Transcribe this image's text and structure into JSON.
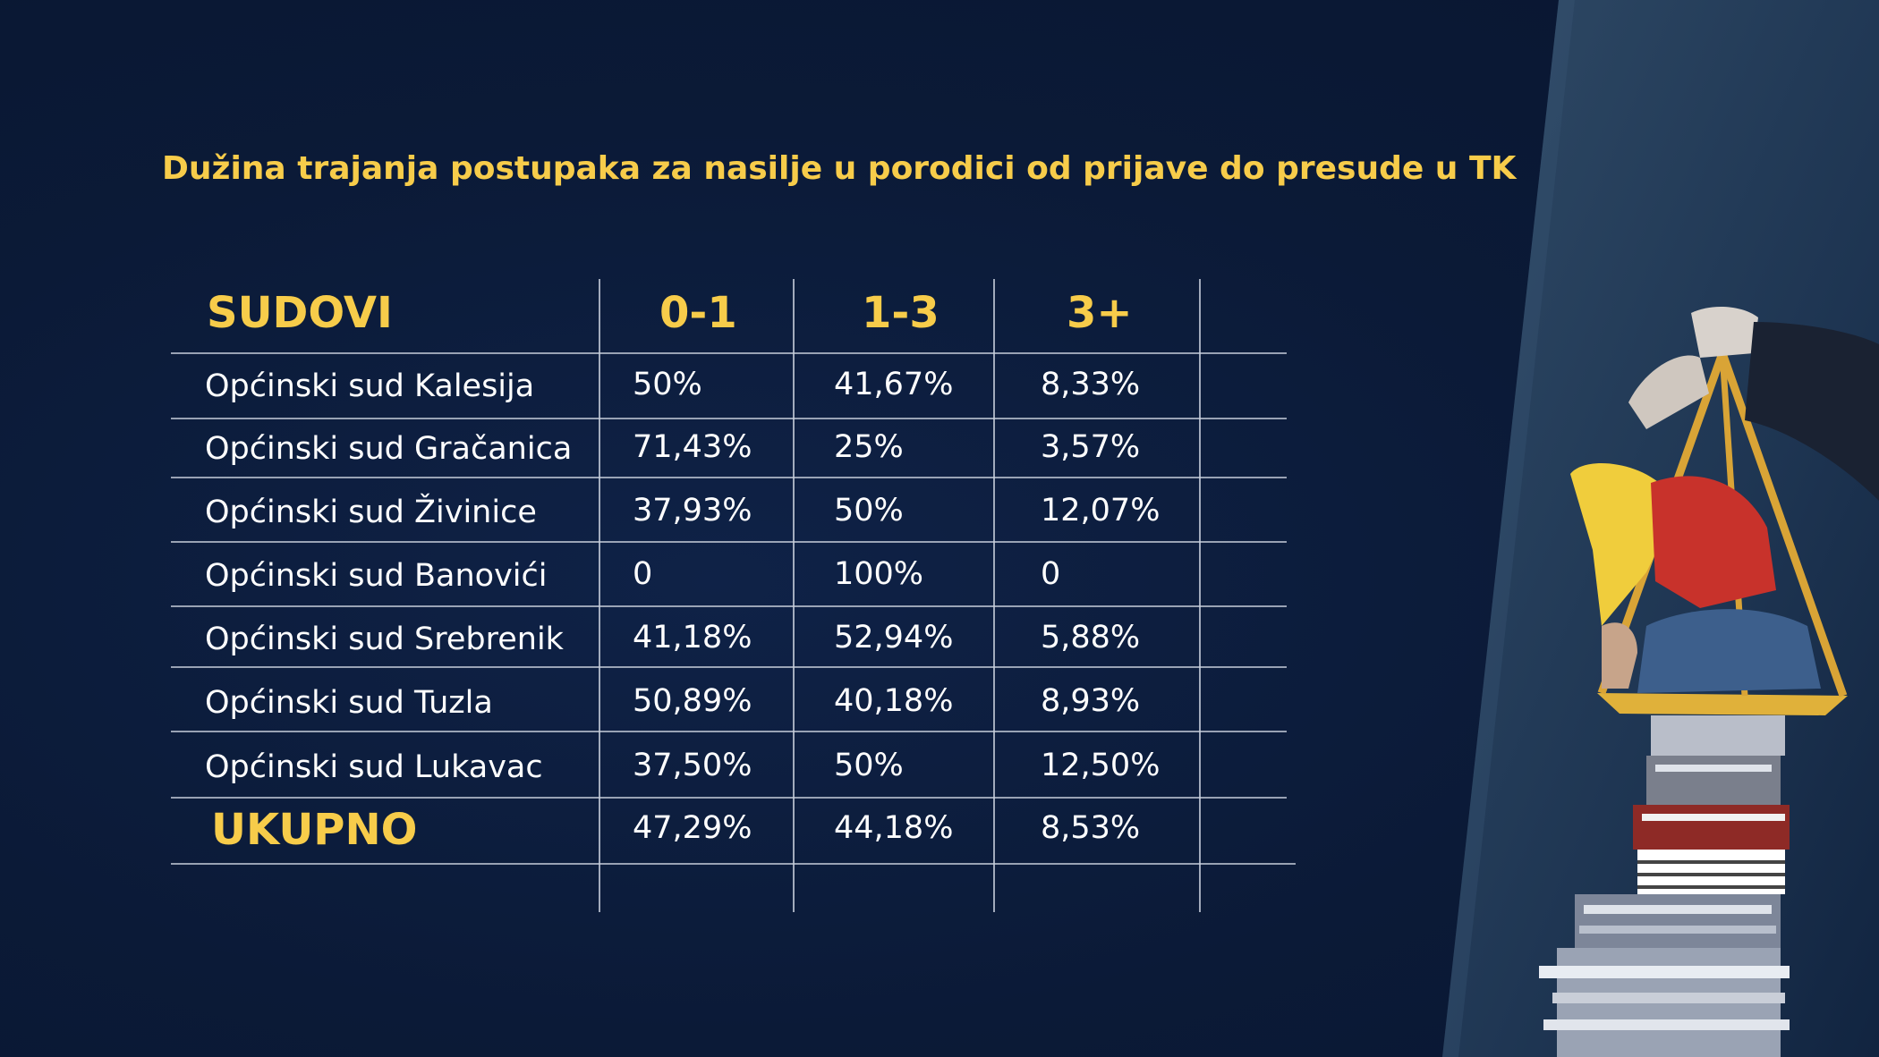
{
  "title": "Dužina trajanja postupaka za nasilje u porodici od prijave do presude u TK",
  "chart_data": {
    "type": "table",
    "columns": [
      "SUDOVI",
      "0-1",
      "1-3",
      "3+"
    ],
    "rows": [
      {
        "court": "Općinski sud Kalesija",
        "values": [
          "50%",
          "41,67%",
          "8,33%"
        ]
      },
      {
        "court": "Općinski sud Gračanica",
        "values": [
          "71,43%",
          "25%",
          "3,57%"
        ]
      },
      {
        "court": "Općinski sud Živinice",
        "values": [
          "37,93%",
          "50%",
          "12,07%"
        ]
      },
      {
        "court": "Općinski sud Banovići",
        "values": [
          "0",
          "100%",
          "0"
        ]
      },
      {
        "court": "Općinski sud Srebrenik",
        "values": [
          "41,18%",
          "52,94%",
          "5,88%"
        ]
      },
      {
        "court": "Općinski sud Tuzla",
        "values": [
          "50,89%",
          "40,18%",
          "8,93%"
        ]
      },
      {
        "court": "Općinski sud Lukavac",
        "values": [
          "37,50%",
          "50%",
          "12,50%"
        ]
      }
    ],
    "total": {
      "label": "UKUPNO",
      "values": [
        "47,29%",
        "44,18%",
        "8,53%"
      ]
    }
  },
  "colors": {
    "background": "#0b1a37",
    "accent": "#f7cc4a",
    "text": "#ffffff",
    "grid": "#c8cfdc"
  },
  "illustration": {
    "name": "justice-scale-illustration-icon"
  }
}
